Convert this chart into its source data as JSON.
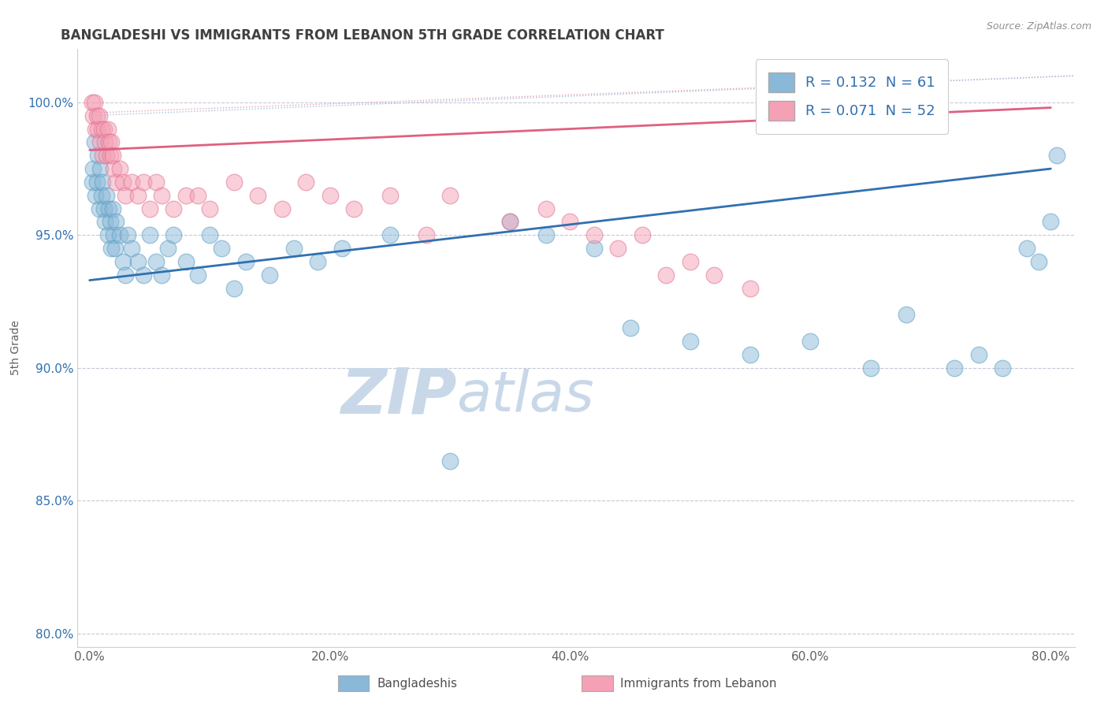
{
  "title": "BANGLADESHI VS IMMIGRANTS FROM LEBANON 5TH GRADE CORRELATION CHART",
  "source": "Source: ZipAtlas.com",
  "ylabel": "5th Grade",
  "x_ticklabels": [
    "0.0%",
    "20.0%",
    "40.0%",
    "60.0%",
    "80.0%"
  ],
  "x_ticks": [
    0.0,
    20.0,
    40.0,
    60.0,
    80.0
  ],
  "y_ticklabels": [
    "80.0%",
    "85.0%",
    "90.0%",
    "95.0%",
    "100.0%"
  ],
  "y_ticks": [
    80.0,
    85.0,
    90.0,
    95.0,
    100.0
  ],
  "xlim": [
    -1.0,
    82.0
  ],
  "ylim": [
    79.5,
    102.0
  ],
  "legend_blue_label": "Bangladeshis",
  "legend_pink_label": "Immigrants from Lebanon",
  "R_blue": 0.132,
  "N_blue": 61,
  "R_pink": 0.071,
  "N_pink": 52,
  "blue_color": "#89b8d8",
  "pink_color": "#f4a0b5",
  "blue_edge_color": "#5a9dc0",
  "pink_edge_color": "#e07090",
  "blue_line_color": "#3070b0",
  "pink_line_color": "#e06080",
  "pink_dash_color": "#e8a0b0",
  "title_color": "#404040",
  "source_color": "#909090",
  "grid_color": "#c8c8d8",
  "watermark_zip_color": "#c8d8e8",
  "watermark_atlas_color": "#c8d8e8",
  "blue_scatter_x": [
    0.2,
    0.3,
    0.4,
    0.5,
    0.6,
    0.7,
    0.8,
    0.9,
    1.0,
    1.1,
    1.2,
    1.3,
    1.4,
    1.5,
    1.6,
    1.7,
    1.8,
    1.9,
    2.0,
    2.1,
    2.2,
    2.5,
    2.8,
    3.0,
    3.2,
    3.5,
    4.0,
    4.5,
    5.0,
    5.5,
    6.0,
    6.5,
    7.0,
    8.0,
    9.0,
    10.0,
    11.0,
    12.0,
    13.0,
    15.0,
    17.0,
    19.0,
    21.0,
    25.0,
    30.0,
    35.0,
    38.0,
    42.0,
    45.0,
    50.0,
    55.0,
    60.0,
    65.0,
    68.0,
    72.0,
    74.0,
    76.0,
    78.0,
    79.0,
    80.0,
    80.5
  ],
  "blue_scatter_y": [
    97.0,
    97.5,
    98.5,
    96.5,
    97.0,
    98.0,
    96.0,
    97.5,
    96.5,
    97.0,
    96.0,
    95.5,
    96.5,
    95.0,
    96.0,
    95.5,
    94.5,
    96.0,
    95.0,
    94.5,
    95.5,
    95.0,
    94.0,
    93.5,
    95.0,
    94.5,
    94.0,
    93.5,
    95.0,
    94.0,
    93.5,
    94.5,
    95.0,
    94.0,
    93.5,
    95.0,
    94.5,
    93.0,
    94.0,
    93.5,
    94.5,
    94.0,
    94.5,
    95.0,
    86.5,
    95.5,
    95.0,
    94.5,
    91.5,
    91.0,
    90.5,
    91.0,
    90.0,
    92.0,
    90.0,
    90.5,
    90.0,
    94.5,
    94.0,
    95.5,
    98.0
  ],
  "pink_scatter_x": [
    0.2,
    0.3,
    0.4,
    0.5,
    0.6,
    0.7,
    0.8,
    0.9,
    1.0,
    1.1,
    1.2,
    1.3,
    1.4,
    1.5,
    1.6,
    1.7,
    1.8,
    1.9,
    2.0,
    2.2,
    2.5,
    2.8,
    3.0,
    3.5,
    4.0,
    4.5,
    5.0,
    5.5,
    6.0,
    7.0,
    8.0,
    9.0,
    10.0,
    12.0,
    14.0,
    16.0,
    18.0,
    20.0,
    22.0,
    25.0,
    28.0,
    30.0,
    35.0,
    38.0,
    40.0,
    42.0,
    44.0,
    46.0,
    48.0,
    50.0,
    52.0,
    55.0
  ],
  "pink_scatter_y": [
    100.0,
    99.5,
    100.0,
    99.0,
    99.5,
    99.0,
    99.5,
    98.5,
    99.0,
    98.0,
    99.0,
    98.5,
    98.0,
    99.0,
    98.5,
    98.0,
    98.5,
    98.0,
    97.5,
    97.0,
    97.5,
    97.0,
    96.5,
    97.0,
    96.5,
    97.0,
    96.0,
    97.0,
    96.5,
    96.0,
    96.5,
    96.5,
    96.0,
    97.0,
    96.5,
    96.0,
    97.0,
    96.5,
    96.0,
    96.5,
    95.0,
    96.5,
    95.5,
    96.0,
    95.5,
    95.0,
    94.5,
    95.0,
    93.5,
    94.0,
    93.5,
    93.0
  ],
  "blue_trend_x0": 0.0,
  "blue_trend_y0": 93.3,
  "blue_trend_x1": 80.0,
  "blue_trend_y1": 97.5,
  "pink_trend_x0": 0.0,
  "pink_trend_y0": 98.2,
  "pink_trend_x1": 80.0,
  "pink_trend_y1": 99.8
}
